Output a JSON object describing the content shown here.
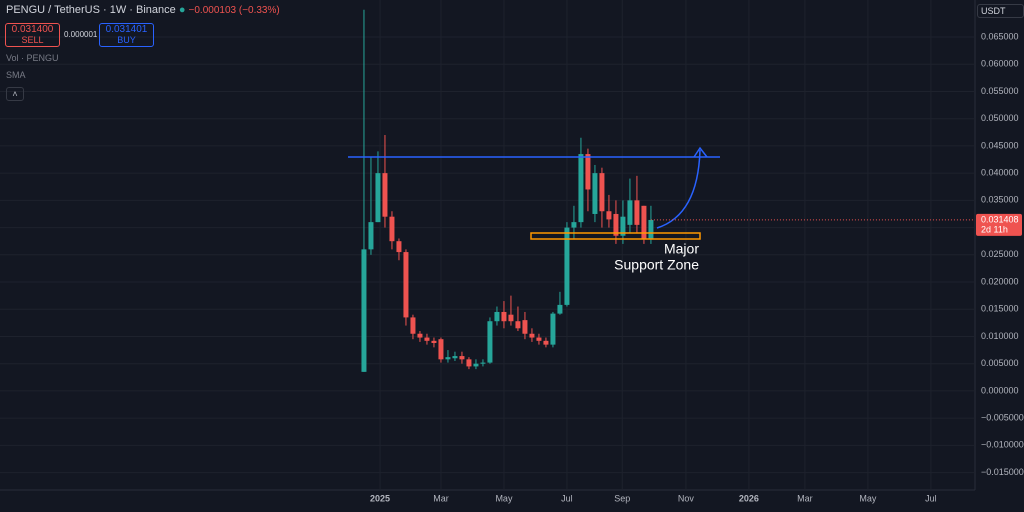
{
  "header": {
    "symbol": "PENGU / TetherUS · 1W · Binance",
    "change": "−0.000103 (−0.33%)",
    "sell_price": "0.031400",
    "sell": "SELL",
    "spread": "0.000001",
    "buy_price": "0.031401",
    "buy": "BUY",
    "vol": "Vol · PENGU",
    "sma": "SMA",
    "currency": "USDT"
  },
  "chart_data": {
    "type": "candlestick",
    "open": [
      0.0035,
      0.026,
      0.031,
      0.04,
      0.032,
      0.0275,
      0.0255,
      0.0135,
      0.0105,
      0.0098,
      0.0092,
      0.0095,
      0.0058,
      0.006,
      0.0064,
      0.0058,
      0.0045,
      0.005,
      0.0052,
      0.0128,
      0.0145,
      0.014,
      0.0128,
      0.013,
      0.0105,
      0.0098,
      0.0092,
      0.0085,
      0.0142,
      0.0158,
      0.03,
      0.031,
      0.0435,
      0.0325,
      0.04,
      0.033,
      0.0325,
      0.0285,
      0.0305,
      0.035,
      0.034,
      0.028
    ],
    "high": [
      0.07,
      0.043,
      0.044,
      0.047,
      0.033,
      0.028,
      0.026,
      0.014,
      0.011,
      0.0105,
      0.0098,
      0.0098,
      0.0075,
      0.0072,
      0.0072,
      0.0062,
      0.0058,
      0.0058,
      0.0135,
      0.0155,
      0.0165,
      0.0175,
      0.0155,
      0.0145,
      0.0115,
      0.0105,
      0.0098,
      0.0145,
      0.0182,
      0.031,
      0.034,
      0.0465,
      0.0445,
      0.0415,
      0.041,
      0.036,
      0.035,
      0.035,
      0.039,
      0.0395,
      0.034,
      0.034
    ],
    "low": [
      0.0035,
      0.025,
      0.031,
      0.03,
      0.026,
      0.024,
      0.012,
      0.0095,
      0.009,
      0.0085,
      0.008,
      0.0052,
      0.0052,
      0.0055,
      0.005,
      0.004,
      0.004,
      0.0045,
      0.005,
      0.012,
      0.0115,
      0.012,
      0.011,
      0.0095,
      0.009,
      0.0085,
      0.008,
      0.008,
      0.014,
      0.0155,
      0.028,
      0.03,
      0.033,
      0.031,
      0.03,
      0.03,
      0.027,
      0.027,
      0.029,
      0.029,
      0.027,
      0.027
    ],
    "close": [
      0.026,
      0.031,
      0.04,
      0.032,
      0.0275,
      0.0255,
      0.0135,
      0.0105,
      0.0098,
      0.0092,
      0.0088,
      0.0058,
      0.0062,
      0.0064,
      0.0058,
      0.0045,
      0.005,
      0.0052,
      0.0128,
      0.0145,
      0.0128,
      0.0128,
      0.0115,
      0.0105,
      0.0098,
      0.0092,
      0.0085,
      0.0142,
      0.0158,
      0.03,
      0.031,
      0.0435,
      0.037,
      0.04,
      0.033,
      0.0315,
      0.0285,
      0.032,
      0.035,
      0.0305,
      0.028,
      0.0314
    ],
    "up_color": "#26a69a",
    "down_color": "#ef5350",
    "xlim": [
      -52,
      87.3
    ],
    "xticks": [
      {
        "value": 2.3,
        "label": "2025"
      },
      {
        "value": 11,
        "label": "Mar"
      },
      {
        "value": 20,
        "label": "May"
      },
      {
        "value": 29,
        "label": "Jul"
      },
      {
        "value": 36.9,
        "label": "Sep"
      },
      {
        "value": 46,
        "label": "Nov"
      },
      {
        "value": 55,
        "label": "2026"
      },
      {
        "value": 63,
        "label": "Mar"
      },
      {
        "value": 72,
        "label": "May"
      },
      {
        "value": 81,
        "label": "Jul"
      }
    ],
    "ylim": [
      -0.0182,
      0.0718
    ],
    "yticks": [
      {
        "value": 0.065,
        "label": "0.065000"
      },
      {
        "value": 0.06,
        "label": "0.060000"
      },
      {
        "value": 0.055,
        "label": "0.055000"
      },
      {
        "value": 0.05,
        "label": "0.050000"
      },
      {
        "value": 0.045,
        "label": "0.045000"
      },
      {
        "value": 0.04,
        "label": "0.040000"
      },
      {
        "value": 0.035,
        "label": "0.035000"
      },
      {
        "value": 0.03,
        "label": "0.030000"
      },
      {
        "value": 0.025,
        "label": "0.025000"
      },
      {
        "value": 0.02,
        "label": "0.020000"
      },
      {
        "value": 0.015,
        "label": "0.015000"
      },
      {
        "value": 0.01,
        "label": "0.010000"
      },
      {
        "value": 0.005,
        "label": "0.005000"
      },
      {
        "value": 0,
        "label": "0.000000"
      },
      {
        "value": -0.005,
        "label": "−0.005000"
      },
      {
        "value": -0.01,
        "label": "−0.010000"
      },
      {
        "value": -0.015,
        "label": "−0.015000"
      }
    ],
    "last_price": {
      "value": 0.031408,
      "label": "0.031408"
    },
    "countdown": "2d 11h",
    "annotation": [
      "Major",
      "Support Zone"
    ]
  }
}
